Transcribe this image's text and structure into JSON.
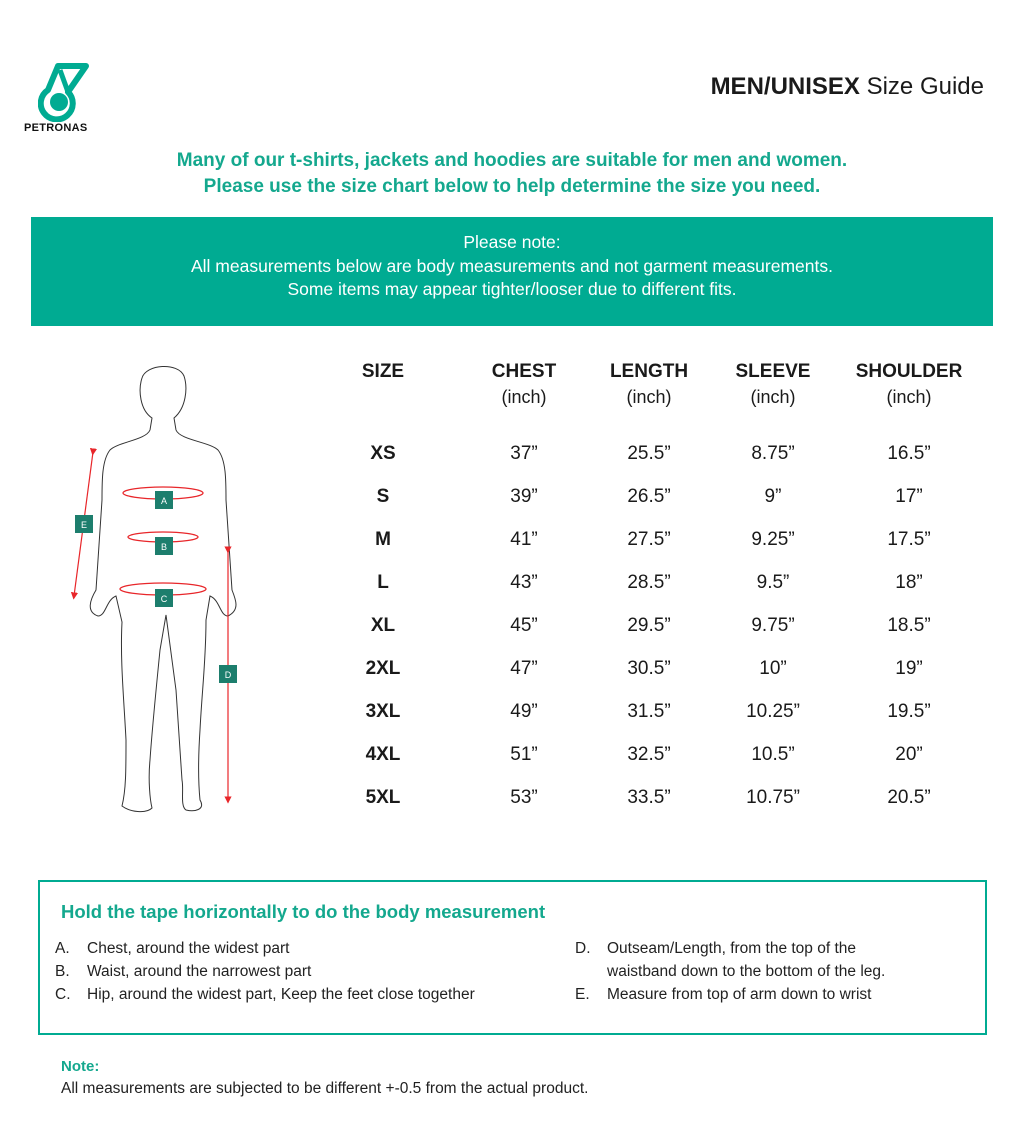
{
  "brand": {
    "name": "PETRONAS",
    "color": "#00ab92"
  },
  "header": {
    "title_bold": "MEN/UNISEX",
    "title_rest": "Size Guide"
  },
  "intro": {
    "line1": "Many of our t-shirts, jackets and hoodies are suitable for men and women.",
    "line2": "Please use the size chart below to help determine the size you need."
  },
  "banner": {
    "line1": "Please note:",
    "line2": "All measurements below are body measurements and not garment measurements.",
    "line3": "Some items may appear tighter/looser due to different fits."
  },
  "figure": {
    "labels": [
      "A",
      "B",
      "C",
      "D",
      "E"
    ]
  },
  "table": {
    "columns": [
      {
        "label": "SIZE",
        "unit": ""
      },
      {
        "label": "CHEST",
        "unit": "(inch)"
      },
      {
        "label": "LENGTH",
        "unit": "(inch)"
      },
      {
        "label": "SLEEVE",
        "unit": "(inch)"
      },
      {
        "label": "SHOULDER",
        "unit": "(inch)"
      }
    ],
    "rows": [
      [
        "XS",
        "37”",
        "25.5”",
        "8.75”",
        "16.5”"
      ],
      [
        "S",
        "39”",
        "26.5”",
        "9”",
        "17”"
      ],
      [
        "M",
        "41”",
        "27.5”",
        "9.25”",
        "17.5”"
      ],
      [
        "L",
        "43”",
        "28.5”",
        "9.5”",
        "18”"
      ],
      [
        "XL",
        "45”",
        "29.5”",
        "9.75”",
        "18.5”"
      ],
      [
        "2XL",
        "47”",
        "30.5”",
        "10”",
        "19”"
      ],
      [
        "3XL",
        "49”",
        "31.5”",
        "10.25”",
        "19.5”"
      ],
      [
        "4XL",
        "51”",
        "32.5”",
        "10.5”",
        "20”"
      ],
      [
        "5XL",
        "53”",
        "33.5”",
        "10.75”",
        "20.5”"
      ]
    ]
  },
  "instructions": {
    "title": "Hold the tape horizontally to do the body measurement",
    "items": [
      {
        "key": "A.",
        "text": "Chest, around the widest part"
      },
      {
        "key": "B.",
        "text": "Waist, around the narrowest part"
      },
      {
        "key": "C.",
        "text": "Hip, around the widest part, Keep the feet close together"
      },
      {
        "key": "D.",
        "text": "Outseam/Length, from the top of the",
        "text2": "waistband down to the bottom of the leg."
      },
      {
        "key": "E.",
        "text": "Measure from top of arm down to wrist"
      }
    ]
  },
  "note": {
    "title": "Note:",
    "text": "All measurements are subjected to be different +-0.5 from the actual product."
  }
}
